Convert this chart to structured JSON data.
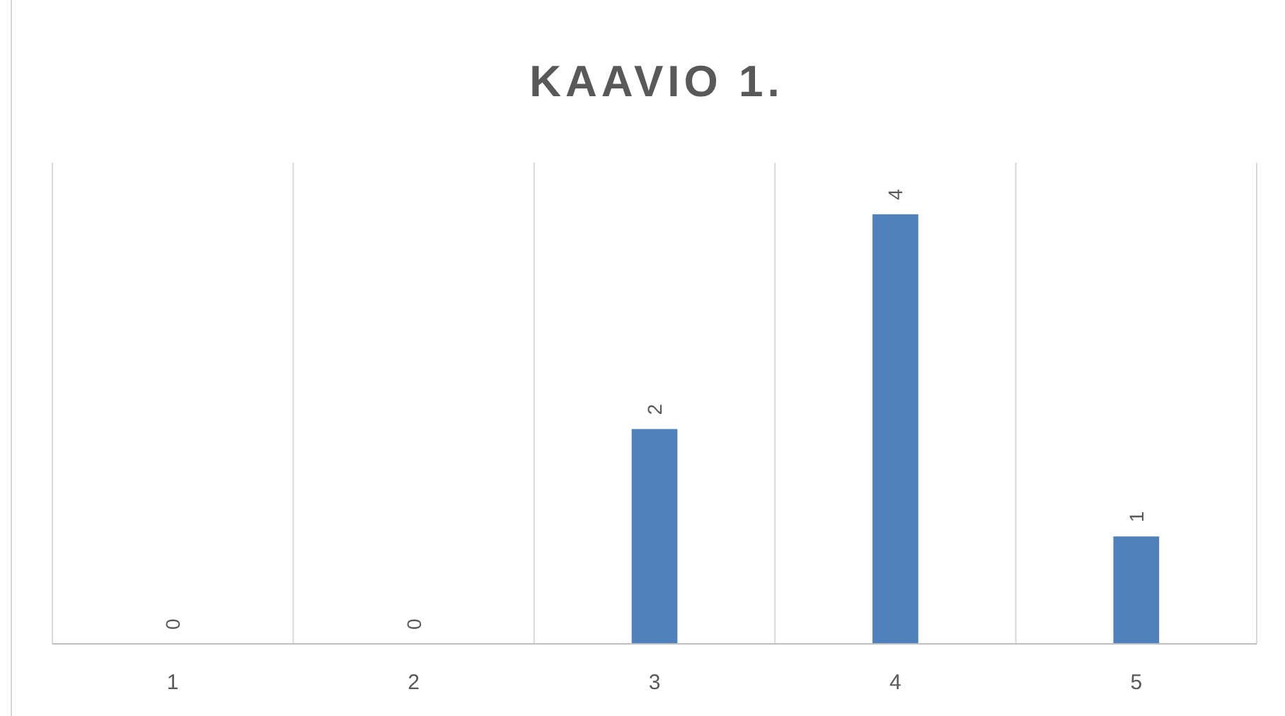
{
  "chart_data": {
    "type": "bar",
    "title": "KAAVIO 1.",
    "categories": [
      "1",
      "2",
      "3",
      "4",
      "5"
    ],
    "values": [
      0,
      0,
      2,
      4,
      1
    ],
    "color": "#4f81bd",
    "data_labels": true,
    "grid": "x"
  }
}
